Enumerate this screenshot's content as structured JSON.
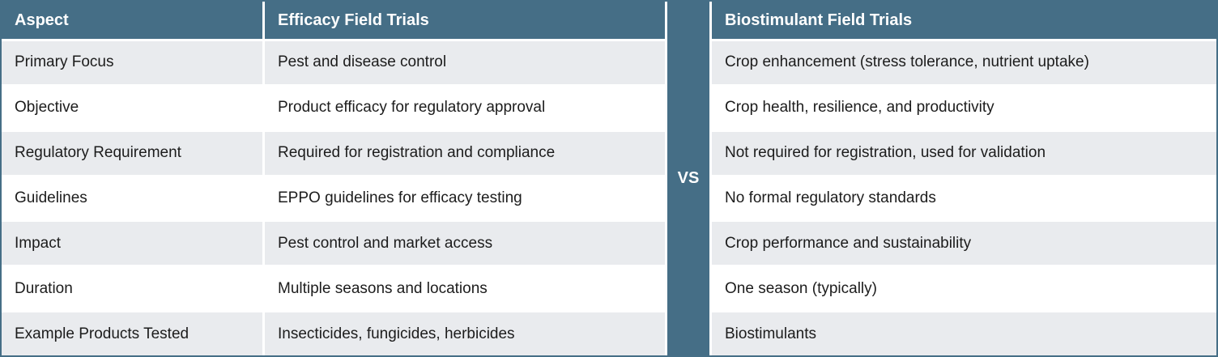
{
  "colors": {
    "header_bg": "#456e86",
    "row_alt_bg": "#e9ebee",
    "row_bg": "#ffffff",
    "header_text": "#ffffff",
    "body_text": "#1c1c1c"
  },
  "table": {
    "headers": {
      "aspect": "Aspect",
      "efficacy": "Efficacy Field Trials",
      "biostimulant": "Biostimulant Field Trials"
    },
    "vs_label": "VS",
    "rows": [
      {
        "aspect": "Primary Focus",
        "efficacy": "Pest and disease control",
        "biostimulant": "Crop enhancement (stress tolerance, nutrient uptake)"
      },
      {
        "aspect": "Objective",
        "efficacy": "Product efficacy for regulatory approval",
        "biostimulant": "Crop health, resilience, and productivity"
      },
      {
        "aspect": "Regulatory Requirement",
        "efficacy": "Required for registration and compliance",
        "biostimulant": "Not required for registration, used for validation"
      },
      {
        "aspect": "Guidelines",
        "efficacy": "EPPO guidelines for efficacy testing",
        "biostimulant": "No formal regulatory standards"
      },
      {
        "aspect": "Impact",
        "efficacy": "Pest control and market access",
        "biostimulant": "Crop performance and sustainability"
      },
      {
        "aspect": "Duration",
        "efficacy": "Multiple seasons and locations",
        "biostimulant": "One season (typically)"
      },
      {
        "aspect": "Example Products Tested",
        "efficacy": "Insecticides, fungicides, herbicides",
        "biostimulant": "Biostimulants"
      }
    ]
  }
}
